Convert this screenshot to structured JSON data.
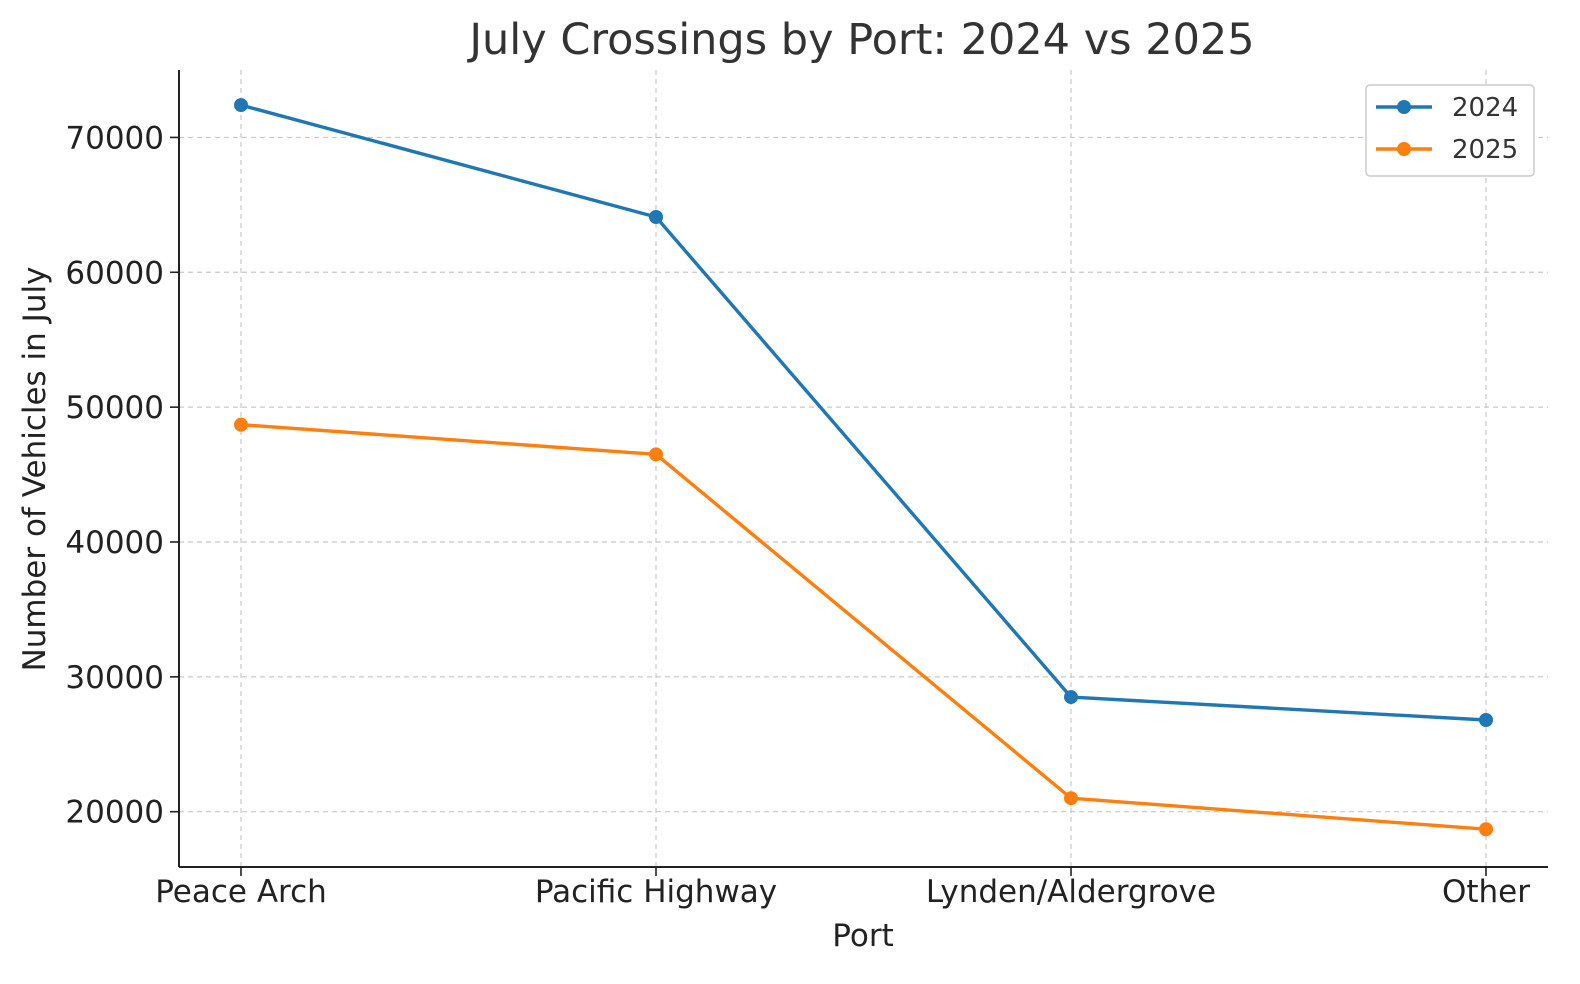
{
  "chart_data": {
    "type": "line",
    "title": "July Crossings by Port: 2024 vs 2025",
    "xlabel": "Port",
    "ylabel": "Number of Vehicles in July",
    "categories": [
      "Peace Arch",
      "Pacific Highway",
      "Lynden/Aldergrove",
      "Other"
    ],
    "series": [
      {
        "name": "2024",
        "color": "#1f77b4",
        "values": [
          72400,
          64100,
          28500,
          26800
        ]
      },
      {
        "name": "2025",
        "color": "#ff7f0e",
        "values": [
          48700,
          46500,
          21000,
          18700
        ]
      }
    ],
    "ylim": [
      15900,
      75000
    ],
    "yticks": [
      20000,
      30000,
      40000,
      50000,
      60000,
      70000
    ],
    "grid": true,
    "legend_position": "top-right"
  }
}
